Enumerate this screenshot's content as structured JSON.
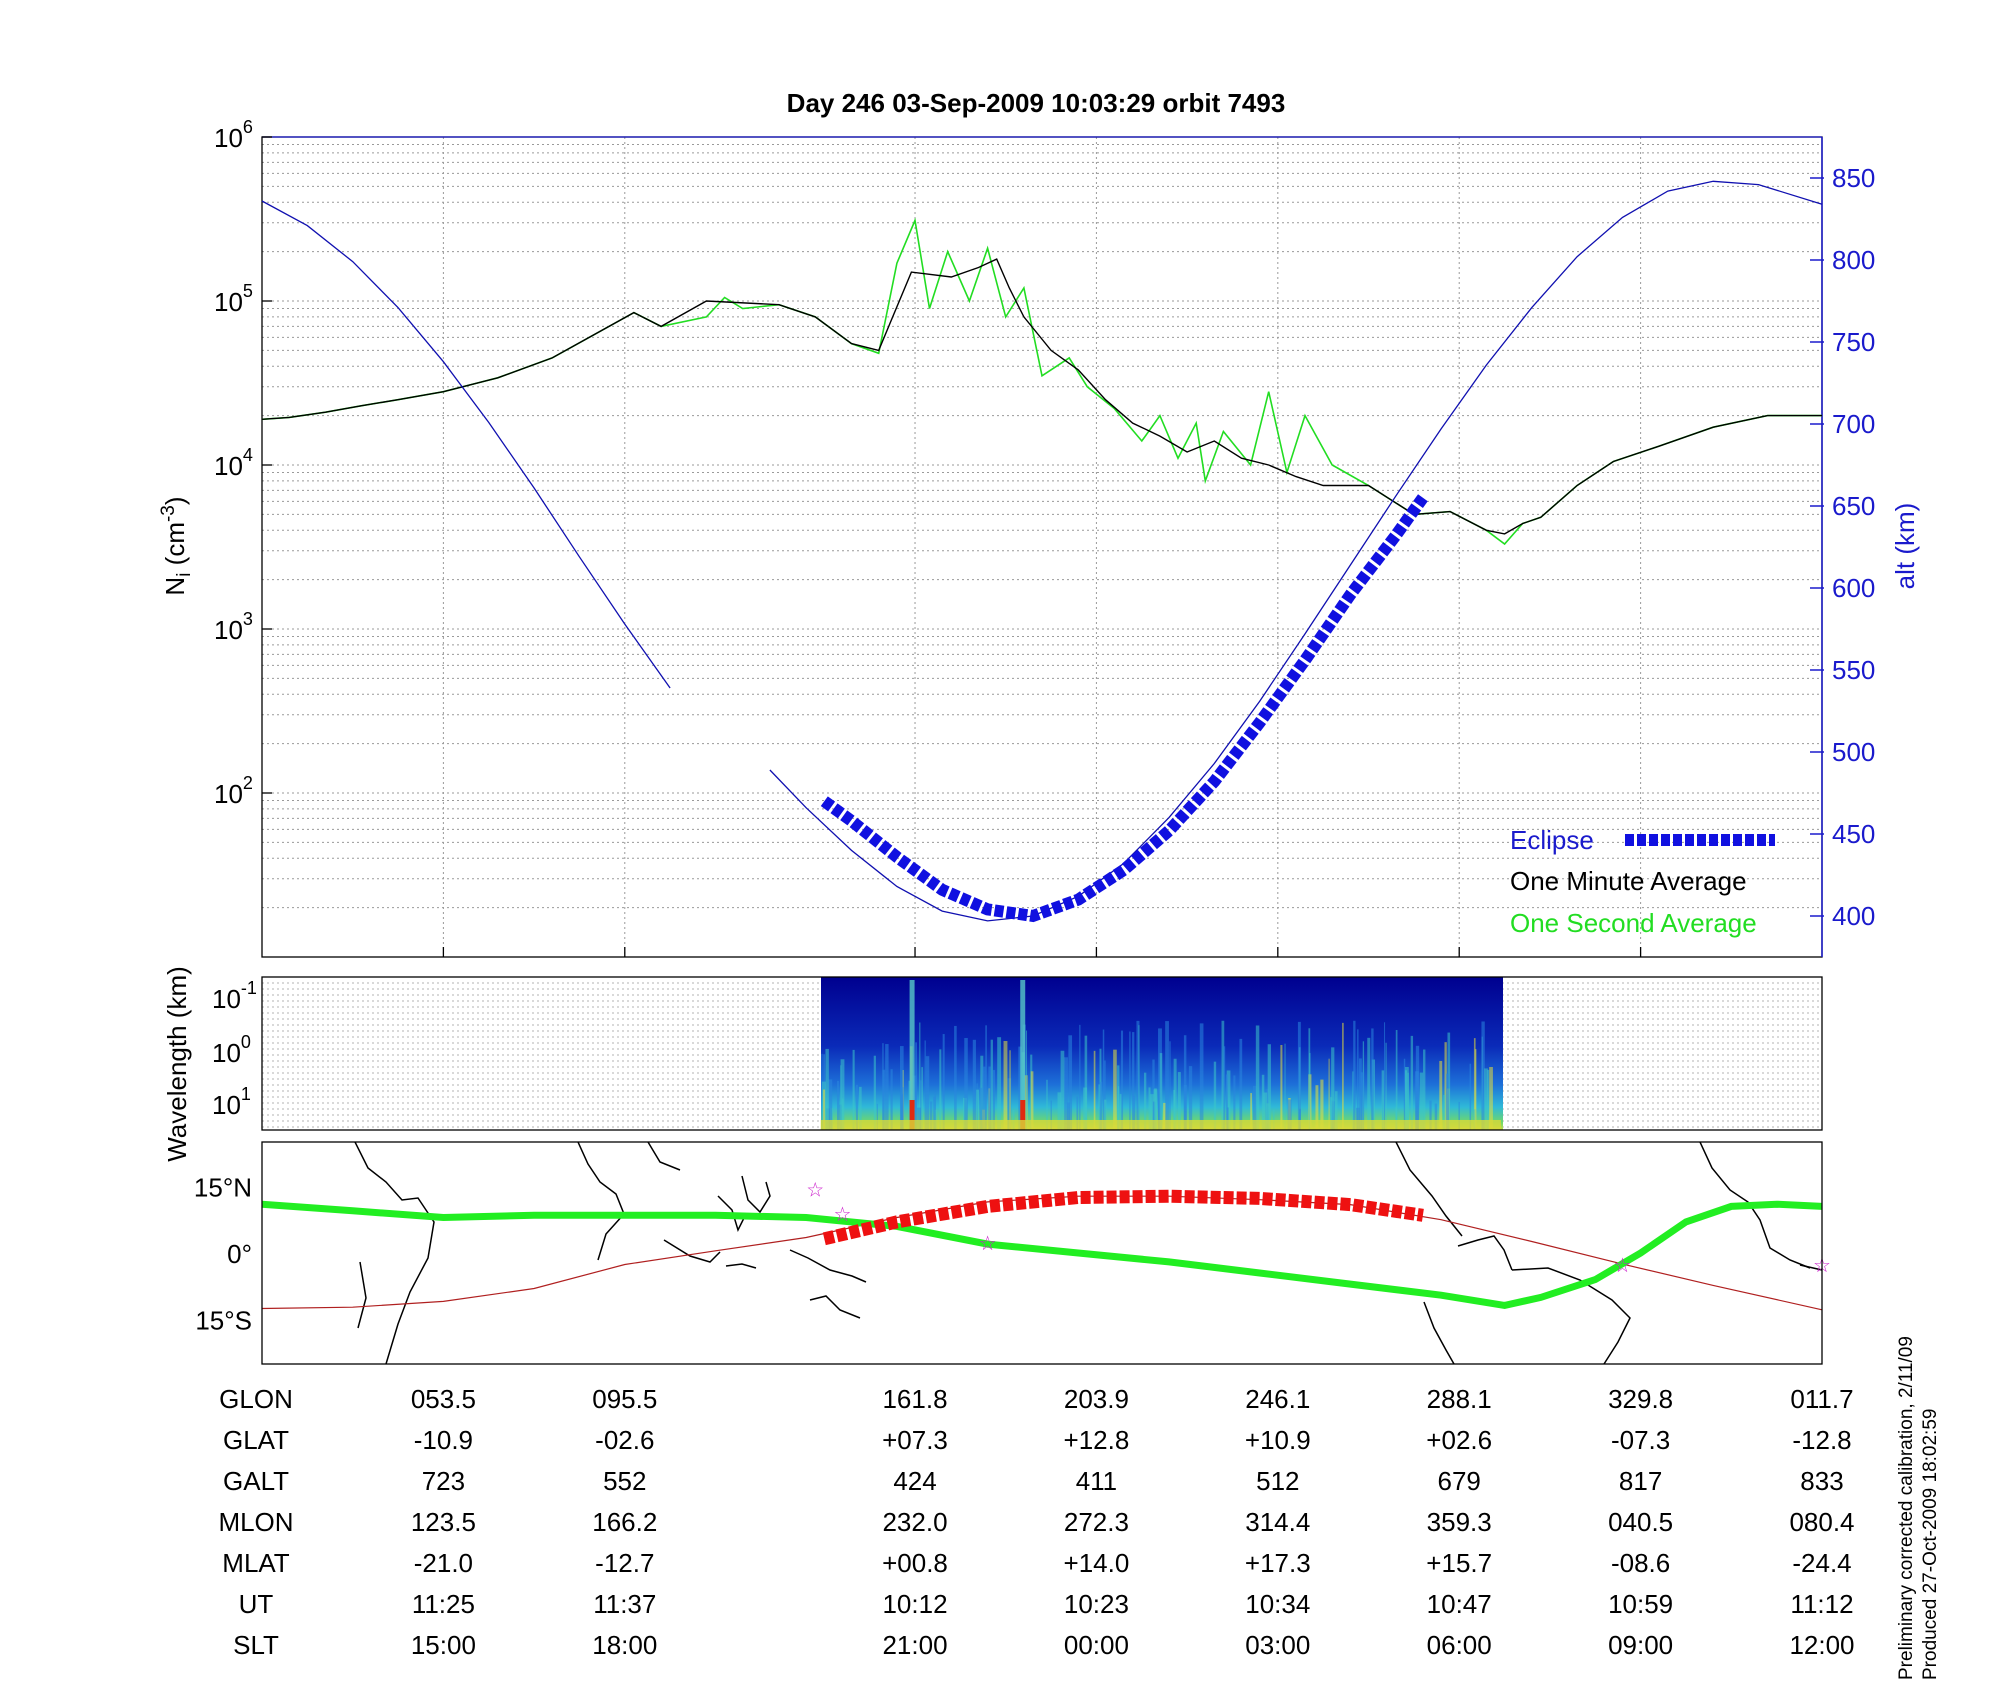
{
  "title": "Day 246  03-Sep-2009 10:03:29   orbit 7493",
  "colors": {
    "altitude": "#1010b0",
    "eclipse": "#1010e0",
    "one_minute": "#000000",
    "one_second": "#22dd22",
    "ground_track": "#b02020",
    "ground_eclipse": "#ee1111",
    "equator_line": "#22ee22",
    "axis_right": "#1a1acc"
  },
  "chart_data": [
    {
      "type": "line",
      "panel": "density",
      "ylabel": "N_i (cm^-3)",
      "yscale": "log",
      "ylim": [
        10,
        1000000
      ],
      "yticks": [
        {
          "base": "10",
          "exp": "6"
        },
        {
          "base": "10",
          "exp": "5"
        },
        {
          "base": "10",
          "exp": "4"
        },
        {
          "base": "10",
          "exp": "3"
        },
        {
          "base": "10",
          "exp": "2"
        }
      ],
      "y2label": "alt (km)",
      "y2lim": [
        375,
        875
      ],
      "y2ticks": [
        "850",
        "800",
        "750",
        "700",
        "650",
        "600",
        "550",
        "500",
        "450",
        "400"
      ],
      "x_sections": [
        0,
        1,
        2,
        3.6,
        4.6,
        5.6,
        6.6,
        7.6,
        8.6
      ],
      "grid": true,
      "legend": {
        "position": "bottom-right",
        "entries": [
          {
            "label": "Eclipse",
            "style": "eclipse"
          },
          {
            "label": "One Minute Average",
            "style": "one_minute"
          },
          {
            "label": "One Second Average",
            "style": "one_second"
          }
        ]
      },
      "series": [
        {
          "name": "One Minute Average",
          "axis": "left",
          "x": [
            0,
            0.15,
            0.35,
            0.55,
            0.75,
            1.0,
            1.3,
            1.6,
            2.05,
            2.2,
            2.45,
            2.85,
            3.05,
            3.25,
            3.4,
            3.58,
            3.8,
            3.95,
            4.05,
            4.12,
            4.2,
            4.35,
            4.5,
            4.65,
            4.8,
            4.95,
            5.1,
            5.25,
            5.4,
            5.55,
            5.7,
            5.85,
            6.1,
            6.35,
            6.55,
            6.75,
            6.85,
            6.95,
            7.05,
            7.25,
            7.45,
            7.7,
            8.0,
            8.3,
            8.6
          ],
          "y": [
            19000,
            19500,
            21000,
            23000,
            25000,
            28000,
            34000,
            45000,
            85000,
            70000,
            100000,
            95000,
            80000,
            55000,
            50000,
            150000,
            140000,
            160000,
            180000,
            120000,
            80000,
            50000,
            38000,
            25000,
            18000,
            15000,
            12000,
            14000,
            11000,
            10000,
            8500,
            7500,
            7500,
            5000,
            5200,
            4000,
            3800,
            4400,
            4800,
            7500,
            10500,
            13000,
            17000,
            20000,
            20000
          ]
        },
        {
          "name": "One Second Average",
          "axis": "left",
          "x": [
            0,
            0.15,
            0.35,
            0.55,
            0.75,
            1.0,
            1.3,
            1.6,
            2.05,
            2.2,
            2.45,
            2.55,
            2.65,
            2.85,
            3.05,
            3.25,
            3.4,
            3.5,
            3.6,
            3.68,
            3.78,
            3.9,
            4.0,
            4.1,
            4.2,
            4.3,
            4.45,
            4.55,
            4.7,
            4.85,
            4.95,
            5.05,
            5.15,
            5.2,
            5.3,
            5.45,
            5.55,
            5.65,
            5.75,
            5.9,
            6.1,
            6.35,
            6.55,
            6.75,
            6.85,
            6.95,
            7.05,
            7.25,
            7.45,
            7.7,
            8.0,
            8.3,
            8.6
          ],
          "y": [
            19000,
            19500,
            21000,
            23000,
            25000,
            28000,
            34000,
            45000,
            85000,
            70000,
            80000,
            105000,
            90000,
            95000,
            80000,
            55000,
            48000,
            170000,
            310000,
            90000,
            200000,
            100000,
            210000,
            80000,
            120000,
            35000,
            45000,
            30000,
            22000,
            14000,
            20000,
            11000,
            18000,
            8000,
            16000,
            10000,
            28000,
            9000,
            20000,
            10000,
            7500,
            5000,
            5200,
            4000,
            3300,
            4400,
            4800,
            7500,
            10500,
            13000,
            17000,
            20000,
            20000
          ]
        },
        {
          "name": "Altitude",
          "axis": "right",
          "x": [
            0,
            0.25,
            0.5,
            0.75,
            1.0,
            1.25,
            1.5,
            1.75,
            2.0,
            2.25,
            2.8,
            3.0,
            3.25,
            3.5,
            3.75,
            4.0,
            4.25,
            4.5,
            4.75,
            5.0,
            5.25,
            5.5,
            5.75,
            6.0,
            6.25,
            6.5,
            6.75,
            7.0,
            7.25,
            7.5,
            7.75,
            8.0,
            8.25,
            8.6
          ],
          "y": [
            836,
            821,
            799,
            771,
            738,
            701,
            661,
            619,
            578,
            539,
            489,
            466,
            440,
            418,
            403,
            397,
            400,
            412,
            432,
            460,
            493,
            531,
            572,
            614,
            656,
            697,
            736,
            771,
            802,
            826,
            842,
            848,
            846,
            834
          ]
        },
        {
          "name": "Eclipse",
          "axis": "right",
          "x": [
            3.1,
            3.25,
            3.5,
            3.75,
            4.0,
            4.25,
            4.5,
            4.75,
            5.0,
            5.25,
            5.5,
            5.75,
            6.0,
            6.25,
            6.4
          ],
          "y": [
            470,
            458,
            436,
            416,
            404,
            400,
            410,
            428,
            452,
            482,
            518,
            556,
            596,
            632,
            655
          ]
        }
      ]
    },
    {
      "type": "heatmap",
      "panel": "spectrogram",
      "ylabel": "Wavelength (km)",
      "yticks": [
        {
          "base": "10",
          "exp": "-1"
        },
        {
          "base": "10",
          "exp": "0"
        },
        {
          "base": "10",
          "exp": "1"
        }
      ],
      "x_range": [
        3.08,
        6.83
      ],
      "grid": true
    },
    {
      "type": "line",
      "panel": "ground-track",
      "yticks": [
        "15°N",
        "0°",
        "15°S"
      ],
      "ylim": [
        -25,
        25
      ],
      "series": [
        {
          "name": "Orbit track",
          "x": [
            0,
            0.5,
            1.0,
            1.5,
            2.0,
            2.5,
            3.0,
            3.5,
            4.0,
            4.5,
            5.0,
            5.5,
            6.0,
            6.5,
            7.0,
            7.5,
            8.0,
            8.6
          ],
          "y": [
            -12.5,
            -12.2,
            -10.9,
            -8.0,
            -2.6,
            0.5,
            3.5,
            8.0,
            11.5,
            12.8,
            12.8,
            12.0,
            10.9,
            7.5,
            2.6,
            -2.5,
            -7.3,
            -12.8
          ]
        },
        {
          "name": "Eclipse",
          "x": [
            3.1,
            3.5,
            4.0,
            4.5,
            5.0,
            5.5,
            6.0,
            6.4
          ],
          "y": [
            3.2,
            7.0,
            10.5,
            12.5,
            12.8,
            12.3,
            10.9,
            8.5
          ]
        },
        {
          "name": "Magnetic equator",
          "x": [
            0,
            0.5,
            1.0,
            1.5,
            2.0,
            2.5,
            3.0,
            3.5,
            4.0,
            4.5,
            5.0,
            5.5,
            6.0,
            6.5,
            6.85,
            7.05,
            7.35,
            7.6,
            7.85,
            8.1,
            8.35,
            8.6
          ],
          "y": [
            11,
            9.5,
            8,
            8.5,
            8.5,
            8.5,
            8,
            6,
            2,
            0,
            -2,
            -4.5,
            -7,
            -9.5,
            -11.8,
            -10,
            -6,
            0,
            7,
            10.5,
            11,
            10.5
          ]
        }
      ]
    }
  ],
  "table": {
    "rows": [
      {
        "label": "GLON",
        "values": [
          "053.5",
          "095.5",
          "161.8",
          "203.9",
          "246.1",
          "288.1",
          "329.8",
          "011.7"
        ]
      },
      {
        "label": "GLAT",
        "values": [
          "-10.9",
          "-02.6",
          "+07.3",
          "+12.8",
          "+10.9",
          "+02.6",
          "-07.3",
          "-12.8"
        ]
      },
      {
        "label": "GALT",
        "values": [
          "723",
          "552",
          "424",
          "411",
          "512",
          "679",
          "817",
          "833"
        ]
      },
      {
        "label": "MLON",
        "values": [
          "123.5",
          "166.2",
          "232.0",
          "272.3",
          "314.4",
          "359.3",
          "040.5",
          "080.4"
        ]
      },
      {
        "label": "MLAT",
        "values": [
          "-21.0",
          "-12.7",
          "+00.8",
          "+14.0",
          "+17.3",
          "+15.7",
          "-08.6",
          "-24.4"
        ]
      },
      {
        "label": "UT",
        "values": [
          "11:25",
          "11:37",
          "10:12",
          "10:23",
          "10:34",
          "10:47",
          "10:59",
          "11:12"
        ]
      },
      {
        "label": "SLT",
        "values": [
          "15:00",
          "18:00",
          "21:00",
          "00:00",
          "03:00",
          "06:00",
          "09:00",
          "12:00"
        ]
      }
    ]
  },
  "footnote": {
    "line1": "Preliminary corrected calibration, 2/11/09",
    "line2": "Produced 27-Oct-2009 18:02:59"
  }
}
